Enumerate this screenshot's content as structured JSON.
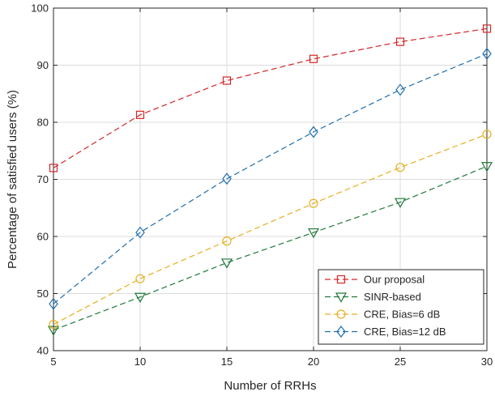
{
  "chart_data": {
    "type": "line",
    "title": "",
    "xlabel": "Number of RRHs",
    "ylabel": "Percentage of satisfied users (%)",
    "xlim": [
      5,
      30
    ],
    "ylim": [
      40,
      100
    ],
    "x_ticks": [
      5,
      10,
      15,
      20,
      25,
      30
    ],
    "y_ticks": [
      40,
      50,
      60,
      70,
      80,
      90,
      100
    ],
    "grid": true,
    "legend_position": "bottom-right",
    "x": [
      5,
      10,
      15,
      20,
      25,
      30
    ],
    "series": [
      {
        "name": "Our proposal",
        "marker": "square",
        "line_style": "dashed",
        "color": "#d62728",
        "values": [
          72.0,
          81.3,
          87.3,
          91.1,
          94.1,
          96.4
        ]
      },
      {
        "name": "SINR-based",
        "marker": "triangle-down",
        "line_style": "dashed",
        "color": "#1f7a3a",
        "values": [
          43.6,
          49.4,
          55.4,
          60.7,
          66.0,
          72.3
        ]
      },
      {
        "name": "CRE, Bias=6 dB",
        "marker": "circle",
        "line_style": "dashed",
        "color": "#e6b020",
        "values": [
          44.6,
          52.6,
          59.2,
          65.8,
          72.1,
          77.9
        ]
      },
      {
        "name": "CRE, Bias=12 dB",
        "marker": "diamond",
        "line_style": "dashed",
        "color": "#1f6fad",
        "values": [
          48.2,
          60.7,
          70.1,
          78.3,
          85.7,
          92.0
        ]
      }
    ]
  }
}
